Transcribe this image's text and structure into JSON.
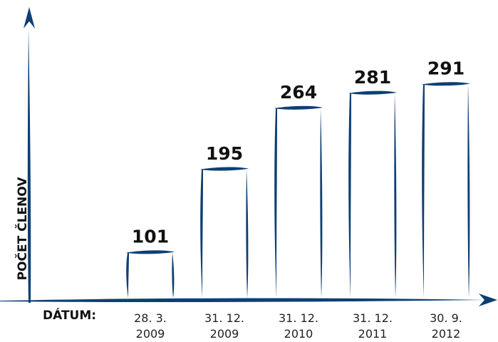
{
  "chart_data": {
    "type": "bar",
    "title": "",
    "xlabel": "DÁTUM:",
    "ylabel": "POČET ČLENOV",
    "categories": [
      [
        "28. 3.",
        "2009"
      ],
      [
        "31. 12.",
        "2009"
      ],
      [
        "31. 12.",
        "2010"
      ],
      [
        "31. 12.",
        "2011"
      ],
      [
        "30. 9.",
        "2012"
      ]
    ],
    "values": [
      101,
      195,
      264,
      281,
      291
    ],
    "data_labels": [
      "101",
      "195",
      "264",
      "281",
      "291"
    ],
    "ylim": [
      0,
      330
    ],
    "grid": false,
    "legend": "none",
    "colors": {
      "stroke": "#0d3f73",
      "bar_fill": "#ffffff",
      "text": "#111111"
    }
  }
}
